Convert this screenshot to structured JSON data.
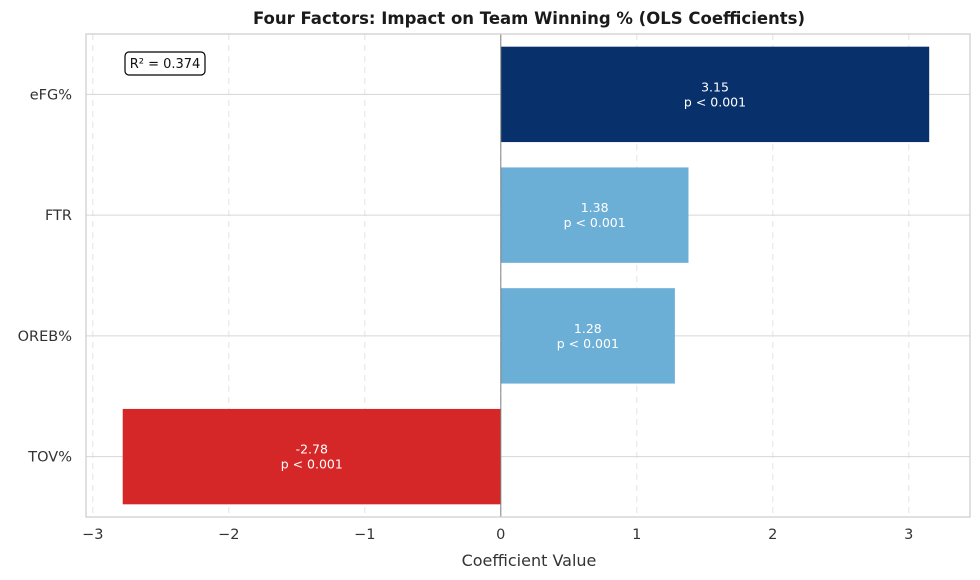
{
  "chart_data": {
    "type": "bar",
    "orientation": "horizontal",
    "title": "Four Factors: Impact on Team Winning % (OLS Coefficients)",
    "xlabel": "Coefficient Value",
    "ylabel": "",
    "xlim": [
      -3.05,
      3.45
    ],
    "xticks": [
      -3,
      -2,
      -1,
      0,
      1,
      2,
      3
    ],
    "xtick_labels": [
      "−3",
      "−2",
      "−1",
      "0",
      "1",
      "2",
      "3"
    ],
    "grid": true,
    "categories": [
      "eFG%",
      "FTR",
      "OREB%",
      "TOV%"
    ],
    "values": [
      3.15,
      1.38,
      1.28,
      -2.78
    ],
    "value_labels": [
      "3.15",
      "1.38",
      "1.28",
      "-2.78"
    ],
    "p_labels": [
      "p < 0.001",
      "p < 0.001",
      "p < 0.001",
      "p < 0.001"
    ],
    "bar_colors": [
      "#08306b",
      "#6baed6",
      "#6baed6",
      "#d62728"
    ],
    "annotation": "R² = 0.374"
  }
}
